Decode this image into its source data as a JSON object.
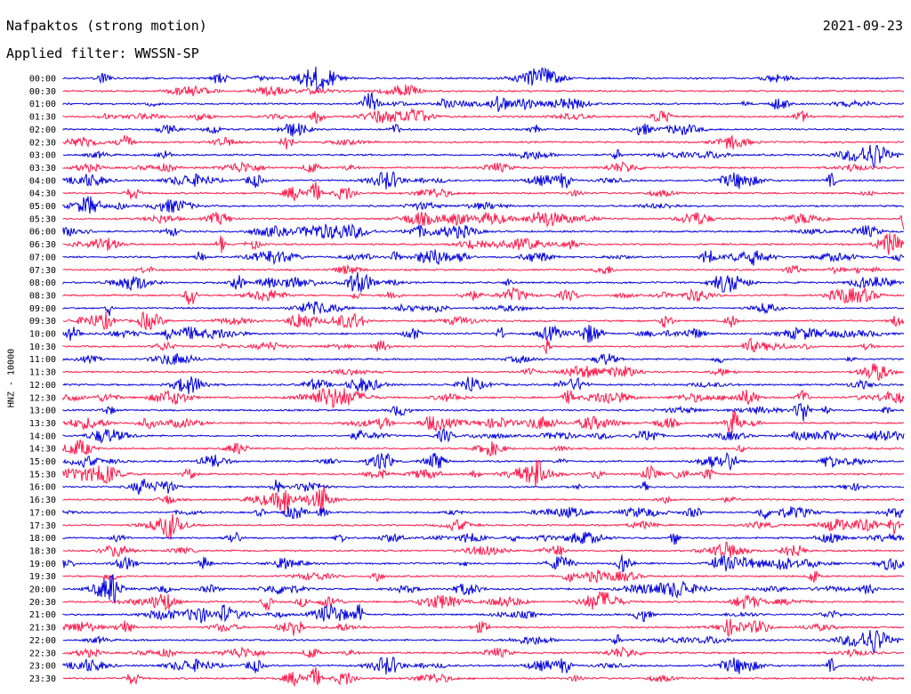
{
  "header": {
    "title": "Nafpaktos (strong motion)",
    "date": "2021-09-23",
    "filter": "Applied filter: WWSSN-SP"
  },
  "chart_data": {
    "type": "line",
    "title": "Nafpaktos (strong motion)",
    "subtitle": "Applied filter: WWSSN-SP",
    "date": "2021-09-23",
    "ylabel": "HNZ - 10000",
    "xlabel": "",
    "grid": false,
    "legend": "none",
    "trace_colors": [
      "#0000dd",
      "#ff1a4a"
    ],
    "rows": [
      "00:00",
      "00:30",
      "01:00",
      "01:30",
      "02:00",
      "02:30",
      "03:00",
      "03:30",
      "04:00",
      "04:30",
      "05:00",
      "05:30",
      "06:00",
      "06:30",
      "07:00",
      "07:30",
      "08:00",
      "08:30",
      "09:00",
      "09:30",
      "10:00",
      "10:30",
      "11:00",
      "11:30",
      "12:00",
      "12:30",
      "13:00",
      "13:30",
      "14:00",
      "14:30",
      "15:00",
      "15:30",
      "16:00",
      "16:30",
      "17:00",
      "17:30",
      "18:00",
      "18:30",
      "19:00",
      "19:30",
      "20:00",
      "20:30",
      "21:00",
      "21:30",
      "22:00",
      "22:30",
      "23:00",
      "23:30"
    ]
  }
}
